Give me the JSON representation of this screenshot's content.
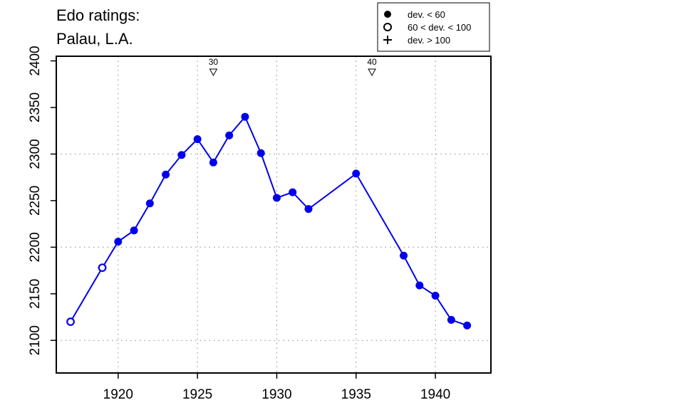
{
  "title": {
    "line1": "Edo ratings:",
    "line2": "Palau, L.A."
  },
  "legend": {
    "items": [
      {
        "label": "dev. < 60",
        "marker": "filled-circle"
      },
      {
        "label": "60 < dev. < 100",
        "marker": "open-circle"
      },
      {
        "label": "dev. > 100",
        "marker": "plus"
      }
    ]
  },
  "colors": {
    "series": "#0000ee",
    "axis": "#000000",
    "grid": "#888888"
  },
  "chart_data": {
    "type": "line",
    "title": "Edo ratings: Palau, L.A.",
    "xlabel": "",
    "ylabel": "",
    "xlim": [
      1916.1,
      1943.5
    ],
    "ylim": [
      2065,
      2405
    ],
    "x_ticks": [
      1920,
      1925,
      1930,
      1935,
      1940
    ],
    "y_ticks": [
      2100,
      2150,
      2200,
      2250,
      2300,
      2350,
      2400
    ],
    "x_grid": [
      1920,
      1925,
      1930,
      1935,
      1940
    ],
    "y_grid": [
      2100,
      2200,
      2300
    ],
    "grid": "dotted",
    "legend_position": "top-right",
    "series": [
      {
        "points": [
          {
            "x": 1917,
            "y": 2120,
            "marker": "open-circle"
          },
          {
            "x": 1919,
            "y": 2178,
            "marker": "open-circle"
          },
          {
            "x": 1920,
            "y": 2206,
            "marker": "filled-circle"
          },
          {
            "x": 1921,
            "y": 2218,
            "marker": "filled-circle"
          },
          {
            "x": 1922,
            "y": 2247,
            "marker": "filled-circle"
          },
          {
            "x": 1923,
            "y": 2278,
            "marker": "filled-circle"
          },
          {
            "x": 1924,
            "y": 2299,
            "marker": "filled-circle"
          },
          {
            "x": 1925,
            "y": 2316,
            "marker": "filled-circle"
          },
          {
            "x": 1926,
            "y": 2291,
            "marker": "filled-circle"
          },
          {
            "x": 1927,
            "y": 2320,
            "marker": "filled-circle"
          },
          {
            "x": 1928,
            "y": 2340,
            "marker": "filled-circle"
          },
          {
            "x": 1929,
            "y": 2301,
            "marker": "filled-circle"
          },
          {
            "x": 1930,
            "y": 2253,
            "marker": "filled-circle"
          },
          {
            "x": 1931,
            "y": 2259,
            "marker": "filled-circle"
          },
          {
            "x": 1932,
            "y": 2241,
            "marker": "filled-circle"
          },
          {
            "x": 1935,
            "y": 2279,
            "marker": "filled-circle"
          },
          {
            "x": 1938,
            "y": 2191,
            "marker": "filled-circle"
          },
          {
            "x": 1939,
            "y": 2159,
            "marker": "filled-circle"
          },
          {
            "x": 1940,
            "y": 2148,
            "marker": "filled-circle"
          },
          {
            "x": 1941,
            "y": 2122,
            "marker": "filled-circle"
          },
          {
            "x": 1942,
            "y": 2116,
            "marker": "filled-circle"
          }
        ]
      }
    ],
    "annotations": [
      {
        "label": "30",
        "x": 1926,
        "marker": "down-triangle"
      },
      {
        "label": "40",
        "x": 1936,
        "marker": "down-triangle"
      }
    ]
  }
}
